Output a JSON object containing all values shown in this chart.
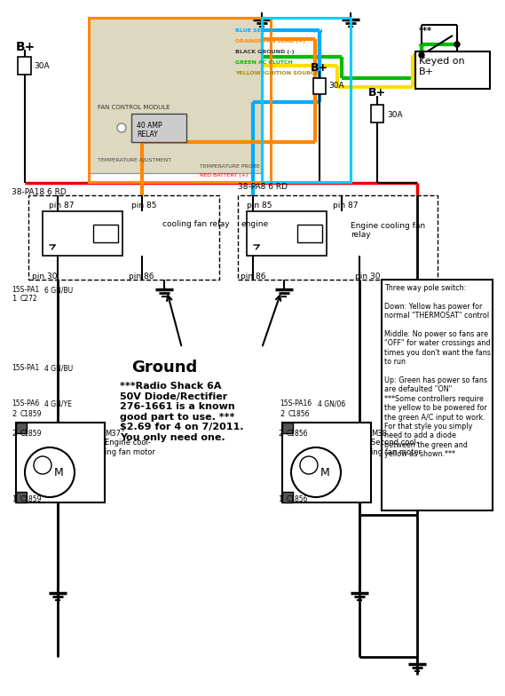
{
  "bg_color": "#ffffff",
  "wire_colors": {
    "blue": "#00aaff",
    "orange": "#ff8800",
    "black": "#111111",
    "green": "#00bb00",
    "yellow": "#ffdd00",
    "red": "#ee0000",
    "cyan": "#00ccff"
  },
  "text_annotations": {
    "b_plus_top": "B+",
    "30a_top": "30A",
    "b_plus_mid": "B+",
    "30a_mid": "30A",
    "b_plus_right": "B+",
    "keyed_on": "Keyed on\nB+",
    "30a_right": "30A",
    "wire_label1": "38-PA18 6 RD",
    "wire_label2": "38-PA8 6 RD",
    "pin87_1": "pin 87",
    "pin85_1": "pin 85",
    "pin30_1": "pin 30",
    "pin86_1": "pin 86",
    "pin85_2": "pin 85",
    "pin87_2": "pin 87",
    "pin30_2": "pin 30",
    "pin86_2": "pin 86",
    "relay1_label": "cooling fan relay",
    "relay2_label": "Engine cooling fan\nrelay",
    "engine_label": "engine",
    "label_15spa1_1": "15S-PA1",
    "label_6gnbu_1": "6 GN/BU",
    "label_c272": "C272",
    "label_15spa1_2": "15S-PA1",
    "label_4gnbu": "4 GN/BU",
    "label_15spa6": "15S-PA6",
    "label_4gnye": "4 GN/YE",
    "label_c1859_1": "C1859",
    "label_m37": "M37\nEngine cool-\ning fan motor",
    "label_c1859_2": "C1859",
    "label_15spa16": "15S-PA16",
    "label_4gn06": "4 GN/06",
    "label_c1856_1": "C1856",
    "label_m38": "M38\nSecond cool-\ning fan motor",
    "label_c1856_2": "C1856",
    "ground_label": "Ground",
    "stars": "***",
    "blue_lead": "BLUE SECOND FAN LEAD (+)",
    "orange_lead": "ORANGE FAN LEAD (+)",
    "black_ground": "BLACK GROUND (-)",
    "green_ac": "GREEN AC CLUTCH",
    "yellow_ignition": "YELLOW IGNITION SOURCE",
    "red_battery": "RED BATTERY (+)",
    "temp_probe": "TEMPERATURE PROBE",
    "temp_adjust": "TEMPERATURE AJUSTMENT",
    "fan_control": "FAN CONTROL MODULE",
    "amp_relay": "40 AMP\nRELAY",
    "radio_shack_note": "***Radio Shack 6A\n50V Diode/Rectifier\n276-1661 is a known\ngood part to use. ***\n$2.69 for 4 on 7/2011.\nYou only need one.",
    "three_way_note": "Three way pole switch:\n\nDown: Yellow has power for\nnormal \"THERMOSAT\" control\n\nMiddle: No power so fans are\n\"OFF\" for water crossings and\ntimes you don't want the fans\nto run\n\nUp: Green has power so fans\nare defaulted \"ON\"\n***Some controllers require\nthe yellow to be powered for\nthe green A/C input to work.\nFor that style you simply\nneed to add a diode\nbetween the green and\nyellow as shown.***"
  }
}
